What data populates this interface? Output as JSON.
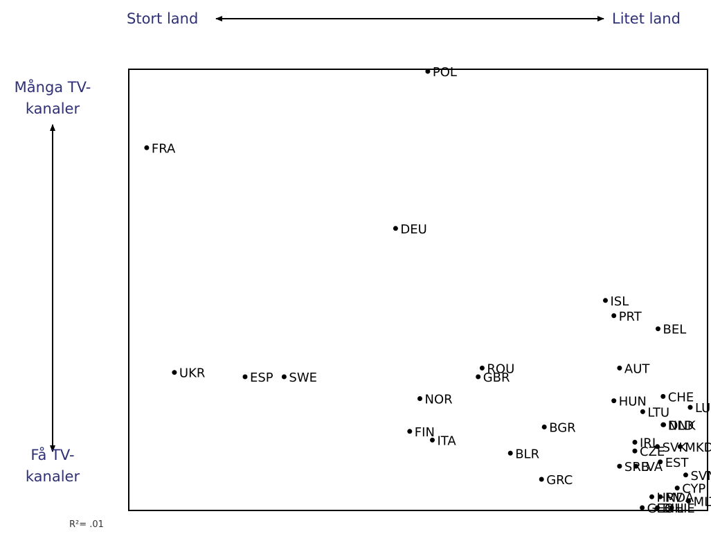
{
  "chart_data": {
    "type": "scatter",
    "title": "",
    "x_axis": {
      "left_label": "Stort land",
      "right_label": "Litet land"
    },
    "y_axis": {
      "top_label": [
        "Många TV-",
        "kanaler"
      ],
      "bottom_label": [
        "Få TV-",
        "kanaler"
      ]
    },
    "annotation": "R²= .01",
    "xlim": [
      0,
      100
    ],
    "ylim": [
      0,
      100
    ],
    "grid": false,
    "points": [
      {
        "label": "POL",
        "x": 51.4,
        "y": 100.0
      },
      {
        "label": "FRA",
        "x": 1.7,
        "y": 82.5
      },
      {
        "label": "DEU",
        "x": 45.7,
        "y": 64.0
      },
      {
        "label": "ISL",
        "x": 82.8,
        "y": 47.5
      },
      {
        "label": "PRT",
        "x": 84.3,
        "y": 44.0
      },
      {
        "label": "BEL",
        "x": 92.1,
        "y": 41.0
      },
      {
        "label": "UKR",
        "x": 6.6,
        "y": 31.0
      },
      {
        "label": "ESP",
        "x": 19.1,
        "y": 30.0
      },
      {
        "label": "SWE",
        "x": 26.0,
        "y": 30.0
      },
      {
        "label": "ROU",
        "x": 61.0,
        "y": 32.0
      },
      {
        "label": "GBR",
        "x": 60.3,
        "y": 30.0
      },
      {
        "label": "AUT",
        "x": 85.3,
        "y": 32.0
      },
      {
        "label": "NOR",
        "x": 50.0,
        "y": 25.0
      },
      {
        "label": "CHE",
        "x": 93.0,
        "y": 25.5
      },
      {
        "label": "HUN",
        "x": 84.3,
        "y": 24.5
      },
      {
        "label": "LTU",
        "x": 89.4,
        "y": 22.0
      },
      {
        "label": "LUX",
        "x": 97.8,
        "y": 23.0
      },
      {
        "label": "BGR",
        "x": 72.0,
        "y": 18.5
      },
      {
        "label": "DNK",
        "x": 93.1,
        "y": 19.0
      },
      {
        "label": "NLD",
        "x": 93.0,
        "y": 19.0
      },
      {
        "label": "FIN",
        "x": 48.2,
        "y": 17.5
      },
      {
        "label": "IRL",
        "x": 88.0,
        "y": 15.0
      },
      {
        "label": "ITA",
        "x": 52.2,
        "y": 15.5
      },
      {
        "label": "SVK",
        "x": 92.0,
        "y": 14.0
      },
      {
        "label": "MKD",
        "x": 96.0,
        "y": 14.0
      },
      {
        "label": "CZE",
        "x": 88.0,
        "y": 13.0
      },
      {
        "label": "BLR",
        "x": 66.0,
        "y": 12.5
      },
      {
        "label": "EST",
        "x": 92.5,
        "y": 10.5
      },
      {
        "label": "SRB",
        "x": 85.3,
        "y": 9.5
      },
      {
        "label": "LVA",
        "x": 88.2,
        "y": 9.5
      },
      {
        "label": "SVN",
        "x": 97.0,
        "y": 7.5
      },
      {
        "label": "GRC",
        "x": 71.5,
        "y": 6.5
      },
      {
        "label": "HRV",
        "x": 91.0,
        "y": 2.5
      },
      {
        "label": "MDA",
        "x": 92.5,
        "y": 2.5
      },
      {
        "label": "CYP",
        "x": 95.5,
        "y": 4.5
      },
      {
        "label": "MLT",
        "x": 97.5,
        "y": 1.5
      },
      {
        "label": "GEO",
        "x": 89.3,
        "y": 0.0
      },
      {
        "label": "BIH",
        "x": 92.0,
        "y": 0.0
      },
      {
        "label": "LIE",
        "x": 94.5,
        "y": 0.0
      }
    ]
  }
}
